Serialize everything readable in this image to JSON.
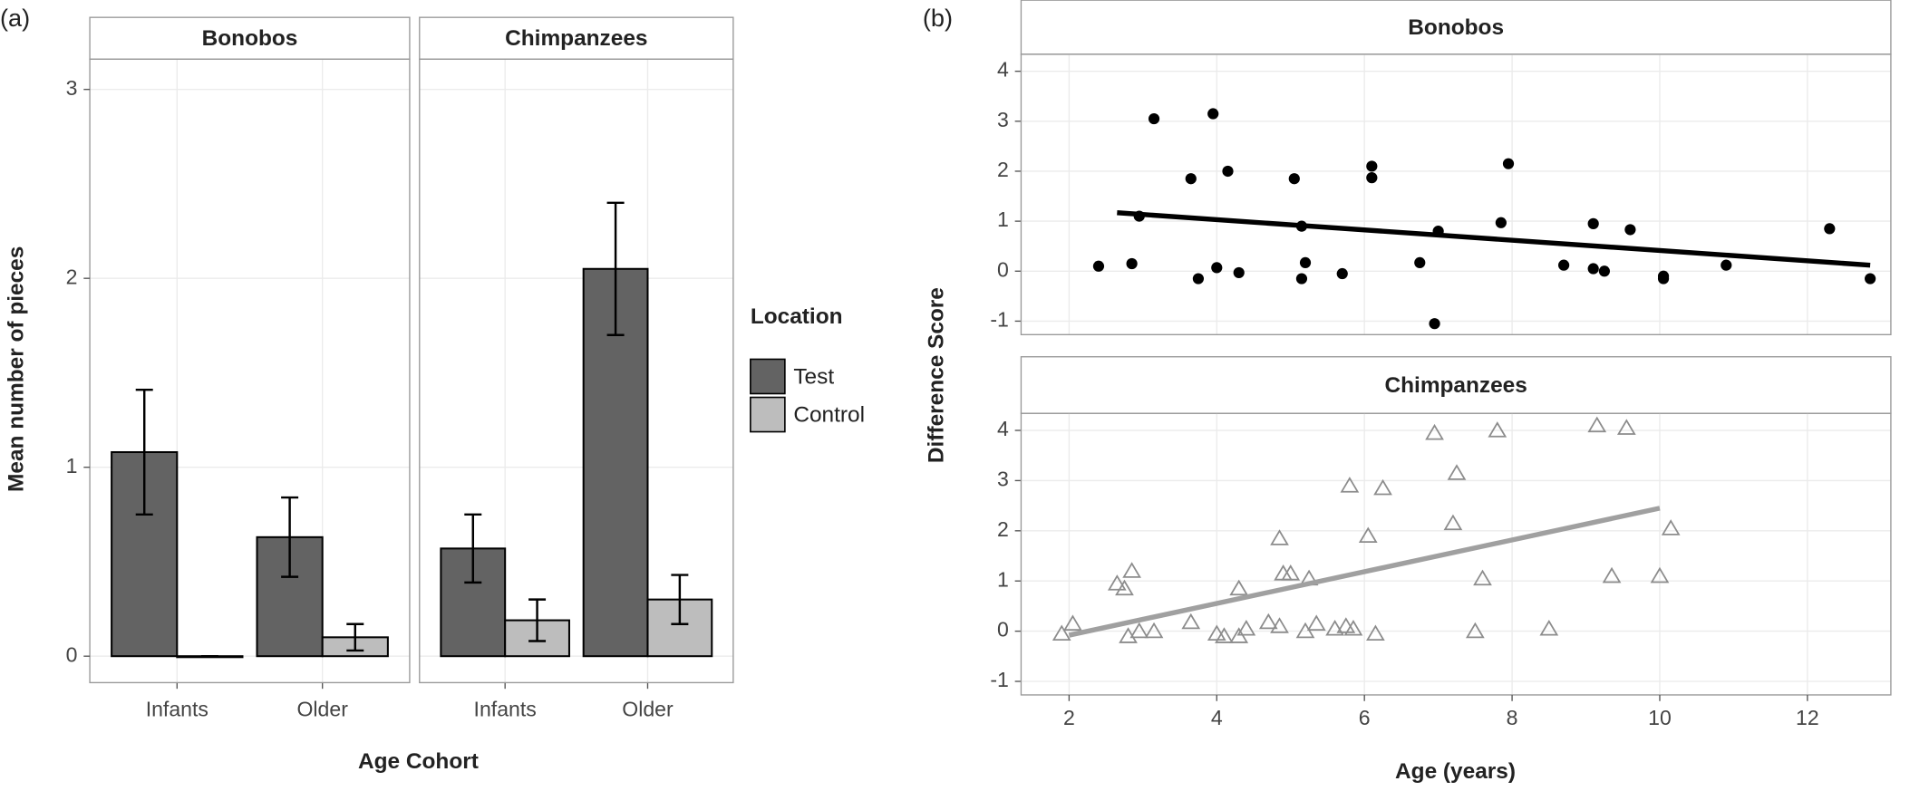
{
  "chart_data": [
    {
      "type": "bar",
      "tag": "(a)",
      "ylabel": "Mean number of pieces",
      "xlabel": "Age Cohort",
      "categories": [
        "Infants",
        "Older"
      ],
      "legend_title": "Location",
      "series": [
        {
          "name": "Test",
          "color": "#636363"
        },
        {
          "name": "Control",
          "color": "#bdbdbd"
        }
      ],
      "ylim": [
        -0.14,
        3.16
      ],
      "yticks": [
        0,
        1,
        2,
        3
      ],
      "grid": true,
      "panels": [
        {
          "title": "Bonobos",
          "values": [
            [
              1.08,
              0.63
            ],
            [
              0,
              0.1
            ]
          ],
          "errors": [
            [
              0.33,
              0.21
            ],
            [
              0,
              0.07
            ]
          ]
        },
        {
          "title": "Chimpanzees",
          "values": [
            [
              0.57,
              2.05
            ],
            [
              0.19,
              0.3
            ]
          ],
          "errors": [
            [
              0.18,
              0.35
            ],
            [
              0.11,
              0.13
            ]
          ]
        }
      ]
    },
    {
      "type": "scatter",
      "tag": "(b)",
      "ylabel": "Difference Score",
      "xlabel": "Age (years)",
      "xlim": [
        1.35,
        13.13
      ],
      "xticks": [
        2,
        4,
        6,
        8,
        10,
        12
      ],
      "ylim": [
        -1.27,
        4.34
      ],
      "yticks": [
        -1,
        0,
        1,
        2,
        3,
        4
      ],
      "grid": true,
      "panels": [
        {
          "title": "Bonobos",
          "marker": "circle",
          "color": "#000000",
          "x": [
            2.4,
            2.85,
            2.95,
            3.15,
            3.65,
            3.75,
            3.95,
            4.0,
            4.15,
            4.3,
            5.05,
            5.15,
            5.15,
            5.2,
            5.7,
            6.1,
            6.1,
            6.75,
            6.95,
            7.0,
            7.85,
            7.95,
            8.7,
            9.1,
            9.1,
            9.25,
            9.6,
            10.05,
            10.05,
            10.9,
            12.3,
            12.85
          ],
          "y": [
            0.1,
            0.15,
            1.1,
            3.05,
            1.85,
            -0.15,
            3.15,
            0.07,
            2.0,
            -0.03,
            1.85,
            0.9,
            -0.15,
            0.17,
            -0.05,
            2.1,
            1.87,
            0.17,
            -1.05,
            0.8,
            0.97,
            2.15,
            0.12,
            0.95,
            0.05,
            0.0,
            0.83,
            -0.1,
            -0.15,
            0.12,
            0.85,
            -0.15
          ],
          "fit": {
            "x": [
              2.65,
              12.85
            ],
            "y": [
              1.17,
              0.12
            ]
          }
        },
        {
          "title": "Chimpanzees",
          "marker": "triangle",
          "color": "#8c8c8c",
          "x": [
            1.9,
            2.05,
            2.65,
            2.75,
            2.8,
            2.85,
            2.95,
            3.15,
            3.65,
            4.0,
            4.1,
            4.3,
            4.3,
            4.4,
            4.7,
            4.85,
            4.85,
            4.9,
            5.0,
            5.2,
            5.25,
            5.35,
            5.6,
            5.75,
            5.8,
            5.85,
            6.05,
            6.15,
            6.25,
            6.95,
            7.2,
            7.25,
            7.5,
            7.6,
            7.8,
            8.5,
            9.15,
            9.35,
            9.55,
            10.0,
            10.15
          ],
          "y": [
            -0.05,
            0.15,
            0.95,
            0.85,
            -0.1,
            1.2,
            0.0,
            0.0,
            0.18,
            -0.05,
            -0.1,
            -0.1,
            0.85,
            0.05,
            0.18,
            0.1,
            1.85,
            1.15,
            1.15,
            0.0,
            1.05,
            0.15,
            0.05,
            0.1,
            2.9,
            0.05,
            1.9,
            -0.05,
            2.85,
            3.95,
            2.15,
            3.15,
            0.0,
            1.05,
            4.0,
            0.05,
            4.1,
            1.1,
            4.05,
            1.1,
            2.05
          ],
          "fit": {
            "x": [
              2.0,
              10.0
            ],
            "y": [
              -0.08,
              2.45
            ]
          }
        }
      ]
    }
  ]
}
